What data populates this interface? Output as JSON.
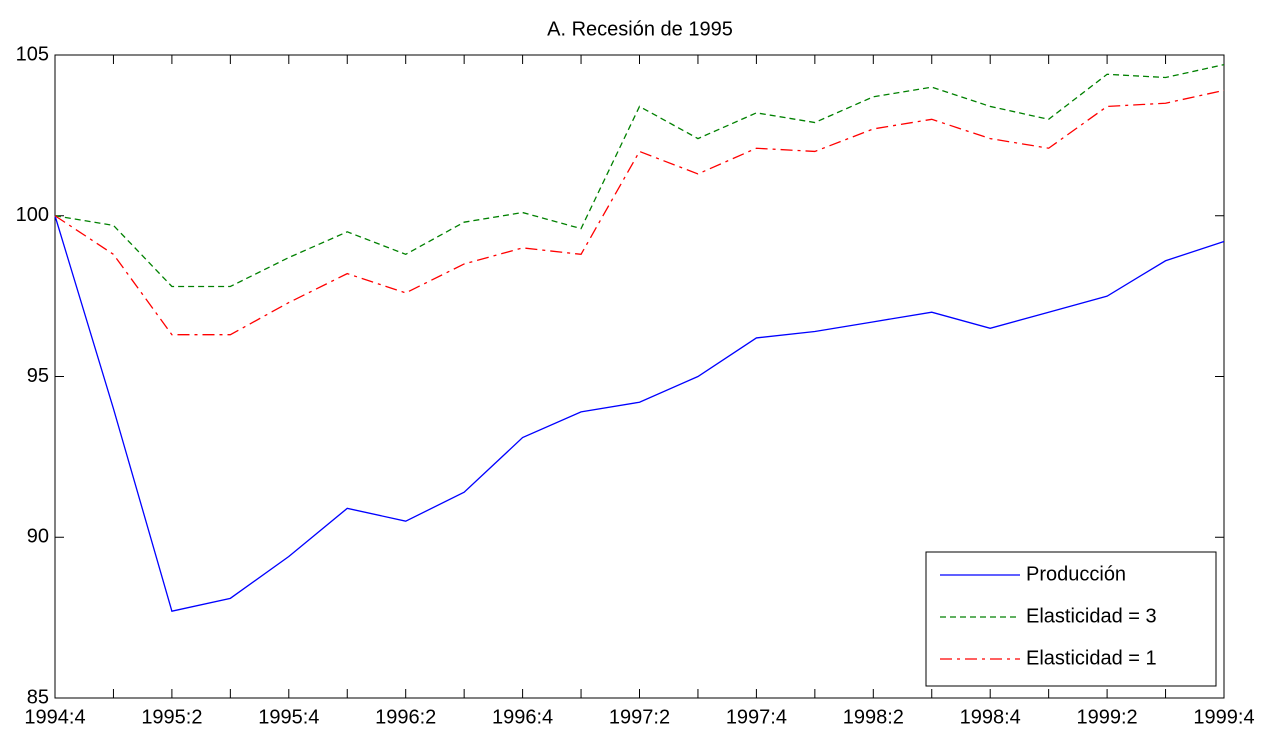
{
  "chart_data": {
    "type": "line",
    "title": "A. Recesión de 1995",
    "categories": [
      "1994:4",
      null,
      "1995:2",
      null,
      "1995:4",
      null,
      "1996:2",
      null,
      "1996:4",
      null,
      "1997:2",
      null,
      "1997:4",
      null,
      "1998:2",
      null,
      "1998:4",
      null,
      "1999:2",
      null,
      "1999:4"
    ],
    "series": [
      {
        "name": "Producción",
        "color": "#0000ff",
        "dash": "solid",
        "values": [
          100,
          94.0,
          87.7,
          88.1,
          89.4,
          90.9,
          90.5,
          91.4,
          93.1,
          93.9,
          94.2,
          95.0,
          96.2,
          96.4,
          96.7,
          97.0,
          96.5,
          97.0,
          97.5,
          98.6,
          99.2
        ]
      },
      {
        "name": "Elasticidad = 3",
        "color": "#008000",
        "dash": "dashed",
        "values": [
          100,
          99.7,
          97.8,
          97.8,
          98.7,
          99.5,
          98.8,
          99.8,
          100.1,
          99.6,
          103.4,
          102.4,
          103.2,
          102.9,
          103.7,
          104.0,
          103.4,
          103.0,
          104.4,
          104.3,
          104.7
        ]
      },
      {
        "name": "Elasticidad = 1",
        "color": "#ff0000",
        "dash": "dashdot",
        "values": [
          100,
          98.8,
          96.3,
          96.3,
          97.3,
          98.2,
          97.6,
          98.5,
          99.0,
          98.8,
          102.0,
          101.3,
          102.1,
          102.0,
          102.7,
          103.0,
          102.4,
          102.1,
          103.4,
          103.5,
          103.9
        ]
      }
    ],
    "ylim": [
      85,
      105
    ],
    "yticks": [
      85,
      90,
      95,
      100,
      105
    ],
    "grid": false,
    "legend": "lower-right"
  }
}
